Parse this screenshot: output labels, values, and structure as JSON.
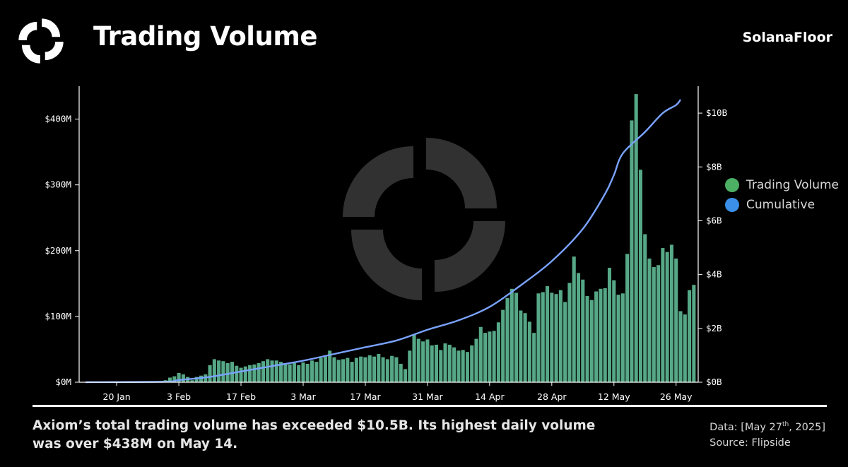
{
  "header": {
    "title": "Trading Volume",
    "brand": "SolanaFloor"
  },
  "footer": {
    "caption": "Axiom’s total trading volume has exceeded $10.5B. Its highest daily volume was over $438M on May 14.",
    "data_label_prefix": "Data: [May 27",
    "data_label_sup": "th",
    "data_label_suffix": ", 2025]",
    "source": "Source: Flipside"
  },
  "colors": {
    "background": "#000000",
    "bar": "#56a886",
    "cumulative_line": "#7aa3ff",
    "legend_volume": "#4caf63",
    "legend_cumulative": "#3b8fe8",
    "watermark": "#5a5a5a"
  },
  "icons": {
    "logo": "solanafloor-logo-icon",
    "watermark": "solanafloor-watermark-icon"
  },
  "chart_data": {
    "type": "bar",
    "title": "Trading Volume",
    "start_date": "2025-01-13",
    "x_tick_labels": [
      "20 Jan",
      "3 Feb",
      "17 Feb",
      "3 Mar",
      "17 Mar",
      "31 Mar",
      "14 Apr",
      "28 Apr",
      "12 May",
      "26 May"
    ],
    "x_tick_dates": [
      "2025-01-20",
      "2025-02-03",
      "2025-02-17",
      "2025-03-03",
      "2025-03-17",
      "2025-03-31",
      "2025-04-14",
      "2025-04-28",
      "2025-05-12",
      "2025-05-26"
    ],
    "left_axis": {
      "ticks": [
        0,
        100,
        200,
        300,
        400
      ],
      "labels": [
        "$0M",
        "$100M",
        "$200M",
        "$300M",
        "$400M"
      ],
      "ylim": [
        0,
        450
      ]
    },
    "right_axis": {
      "ticks": [
        0,
        2,
        4,
        6,
        8,
        10
      ],
      "labels": [
        "$0B",
        "$2B",
        "$4B",
        "$6B",
        "$8B",
        "$10B"
      ],
      "ylim": [
        0,
        11
      ]
    },
    "legend_position": "right",
    "series": [
      {
        "name": "Trading Volume",
        "axis": "left",
        "unit": "$M",
        "values": [
          0,
          0,
          0,
          0,
          0,
          0,
          0,
          0,
          0,
          0,
          0,
          0,
          0,
          0,
          0,
          0,
          0,
          0,
          3,
          7,
          9,
          14,
          12,
          8,
          3,
          8,
          10,
          12,
          26,
          35,
          33,
          32,
          29,
          31,
          25,
          22,
          24,
          26,
          27,
          29,
          32,
          35,
          33,
          33,
          31,
          29,
          27,
          29,
          26,
          30,
          28,
          33,
          31,
          37,
          39,
          48,
          38,
          34,
          35,
          37,
          31,
          37,
          39,
          38,
          41,
          39,
          43,
          38,
          35,
          40,
          38,
          28,
          20,
          48,
          72,
          66,
          62,
          65,
          56,
          57,
          49,
          59,
          57,
          53,
          48,
          49,
          46,
          56,
          66,
          84,
          75,
          77,
          78,
          91,
          110,
          128,
          142,
          136,
          109,
          105,
          92,
          75,
          135,
          137,
          146,
          136,
          134,
          140,
          122,
          151,
          191,
          166,
          156,
          131,
          125,
          138,
          142,
          143,
          174,
          155,
          133,
          135,
          195,
          398,
          438,
          323,
          225,
          188,
          175,
          178,
          204,
          198,
          209,
          188,
          108,
          103,
          140,
          148
        ]
      },
      {
        "name": "Cumulative",
        "axis": "right",
        "unit": "$B",
        "points": [
          [
            "2025-01-13",
            0
          ],
          [
            "2025-01-31",
            0.02
          ],
          [
            "2025-02-03",
            0.08
          ],
          [
            "2025-02-10",
            0.2
          ],
          [
            "2025-02-17",
            0.4
          ],
          [
            "2025-02-24",
            0.6
          ],
          [
            "2025-03-03",
            0.8
          ],
          [
            "2025-03-10",
            1.05
          ],
          [
            "2025-03-17",
            1.3
          ],
          [
            "2025-03-24",
            1.55
          ],
          [
            "2025-03-31",
            1.95
          ],
          [
            "2025-04-07",
            2.3
          ],
          [
            "2025-04-14",
            2.8
          ],
          [
            "2025-04-21",
            3.6
          ],
          [
            "2025-04-28",
            4.5
          ],
          [
            "2025-05-05",
            5.7
          ],
          [
            "2025-05-10",
            7.0
          ],
          [
            "2025-05-12",
            7.7
          ],
          [
            "2025-05-14",
            8.5
          ],
          [
            "2025-05-19",
            9.3
          ],
          [
            "2025-05-23",
            10.0
          ],
          [
            "2025-05-26",
            10.3
          ],
          [
            "2025-05-27",
            10.5
          ]
        ]
      }
    ]
  }
}
